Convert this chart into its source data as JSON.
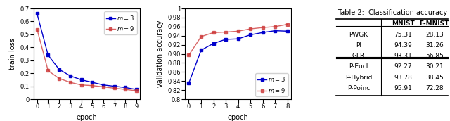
{
  "train_loss_m3": [
    0.66,
    0.34,
    0.23,
    0.18,
    0.15,
    0.13,
    0.11,
    0.1,
    0.09,
    0.075
  ],
  "train_loss_m9": [
    0.54,
    0.22,
    0.16,
    0.13,
    0.11,
    0.105,
    0.095,
    0.085,
    0.075,
    0.065
  ],
  "val_acc_m3": [
    0.835,
    0.908,
    0.923,
    0.932,
    0.933,
    0.942,
    0.947,
    0.951,
    0.95
  ],
  "val_acc_m9": [
    0.897,
    0.938,
    0.947,
    0.948,
    0.95,
    0.955,
    0.958,
    0.96,
    0.965
  ],
  "epochs_loss": [
    0,
    1,
    2,
    3,
    4,
    5,
    6,
    7,
    8,
    9
  ],
  "epochs_acc": [
    0,
    1,
    2,
    3,
    4,
    5,
    6,
    7,
    8
  ],
  "color_m3": "#0000cc",
  "color_m9": "#cc3333",
  "table_title": "Table 2:  Classification accuracy",
  "table_rows": [
    [
      "PWGK",
      "75.31",
      "28.13"
    ],
    [
      "PI",
      "94.39",
      "31.26"
    ],
    [
      "GLR",
      "93.31",
      "56.85"
    ],
    [
      "P-Eucl",
      "92.27",
      "30.21"
    ],
    [
      "P-Hybrid",
      "93.78",
      "38.45"
    ],
    [
      "P-Poinc",
      "95.91",
      "72.28"
    ]
  ],
  "col_headers": [
    "",
    "MNIST",
    "F-MNIST"
  ],
  "ylim_loss": [
    0,
    0.7
  ],
  "ylim_acc": [
    0.8,
    1.0
  ],
  "xlabel": "epoch",
  "ylabel_loss": "train loss",
  "ylabel_acc": "validation accuracy"
}
